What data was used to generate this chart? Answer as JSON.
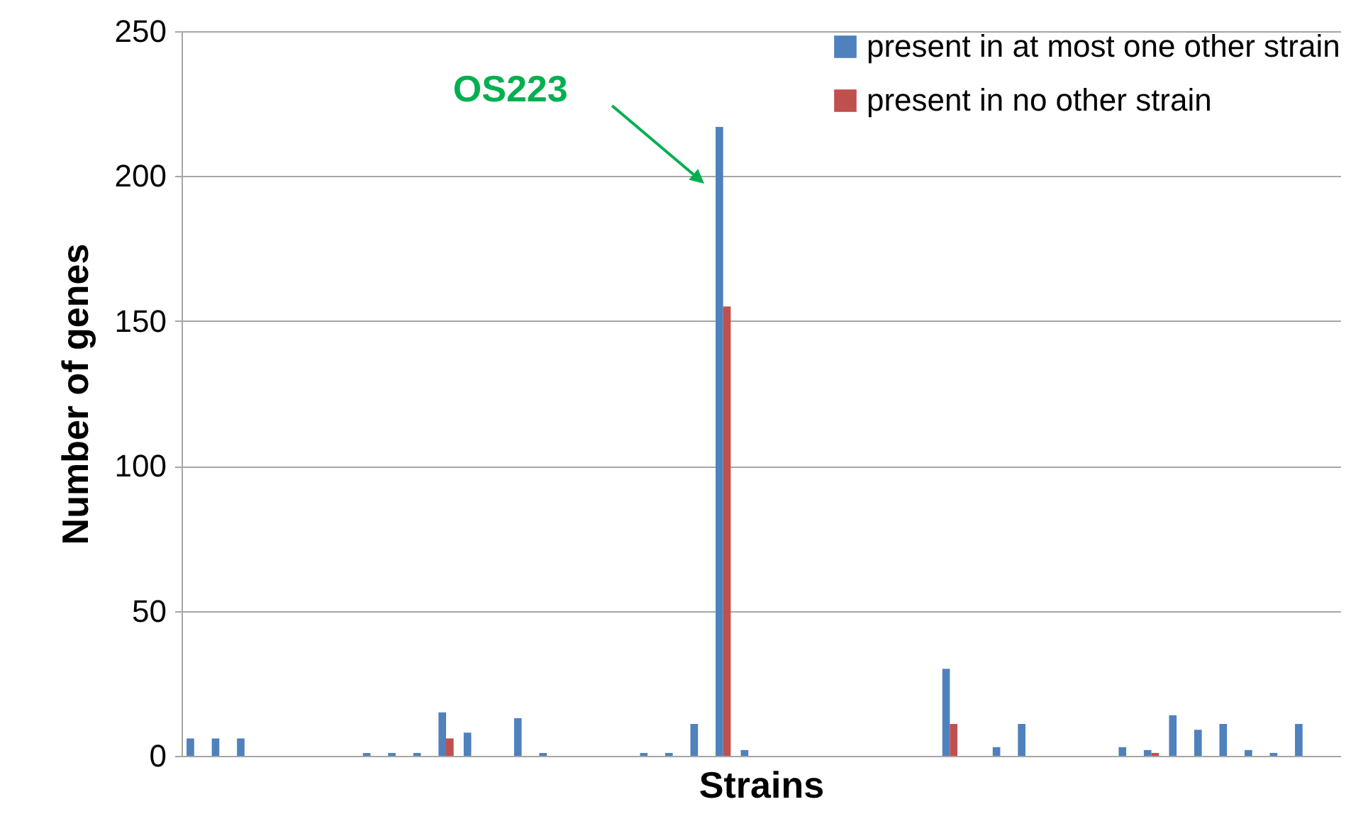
{
  "chart_data": {
    "type": "bar",
    "xlabel": "Strains",
    "ylabel": "Number of genes",
    "categories": [
      null,
      null,
      null,
      null,
      null,
      null,
      null,
      null,
      null,
      null,
      null,
      null,
      null,
      null,
      null,
      null,
      null,
      null,
      null,
      null,
      null,
      null,
      null,
      null,
      null,
      null,
      null,
      null,
      null,
      null,
      null,
      null,
      null,
      null,
      null,
      null,
      null,
      null,
      null,
      null,
      null,
      null,
      null,
      null,
      null,
      null
    ],
    "series": [
      {
        "name": "present in at most one other strain",
        "color": "#4f81bd",
        "values": [
          6,
          6,
          6,
          0,
          0,
          0,
          0,
          1,
          1,
          1,
          15,
          8,
          0,
          13,
          1,
          0,
          0,
          0,
          1,
          1,
          11,
          217,
          2,
          0,
          0,
          0,
          0,
          0,
          0,
          0,
          30,
          0,
          3,
          11,
          0,
          0,
          0,
          3,
          2,
          14,
          9,
          11,
          2,
          1,
          11,
          0
        ]
      },
      {
        "name": "present in no other strain",
        "color": "#c0504d",
        "values": [
          0,
          0,
          0,
          0,
          0,
          0,
          0,
          0,
          0,
          0,
          6,
          0,
          0,
          0,
          0,
          0,
          0,
          0,
          0,
          0,
          0,
          155,
          0,
          0,
          0,
          0,
          0,
          0,
          0,
          0,
          11,
          0,
          0,
          0,
          0,
          0,
          0,
          0,
          1,
          0,
          0,
          0,
          0,
          0,
          0,
          0
        ]
      }
    ],
    "ylim": [
      0,
      250
    ],
    "yticks": [
      0,
      50,
      100,
      150,
      200,
      250
    ],
    "grid": "y",
    "legend": "top right",
    "tick_labels": "y",
    "annotations": [
      "OS223"
    ]
  }
}
